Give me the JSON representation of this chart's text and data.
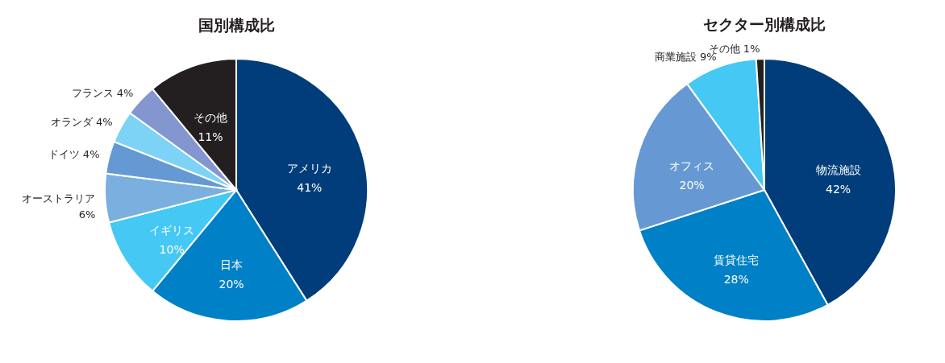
{
  "chart_data": [
    {
      "type": "pie",
      "title": "国別構成比",
      "categories": [
        "アメリカ",
        "日本",
        "イギリス",
        "オーストラリア",
        "ドイツ",
        "オランダ",
        "フランス",
        "その他"
      ],
      "values": [
        41,
        20,
        10,
        6,
        4,
        4,
        4,
        11
      ],
      "value_labels": [
        "41%",
        "20%",
        "10%",
        "6%",
        "4%",
        "4%",
        "4%",
        "11%"
      ],
      "colors": [
        "#003d7a",
        "#0080c6",
        "#45c8f4",
        "#7aafdf",
        "#6599d3",
        "#7dd3f6",
        "#8496cf",
        "#231f20"
      ]
    },
    {
      "type": "pie",
      "title": "セクター別構成比",
      "categories": [
        "物流施設",
        "賃貸住宅",
        "オフィス",
        "商業施設",
        "その他"
      ],
      "values": [
        42,
        28,
        20,
        9,
        1
      ],
      "value_labels": [
        "42%",
        "28%",
        "20%",
        "9%",
        "1%"
      ],
      "colors": [
        "#003d7a",
        "#0080c6",
        "#6699d3",
        "#45c8f4",
        "#231f20"
      ]
    }
  ]
}
